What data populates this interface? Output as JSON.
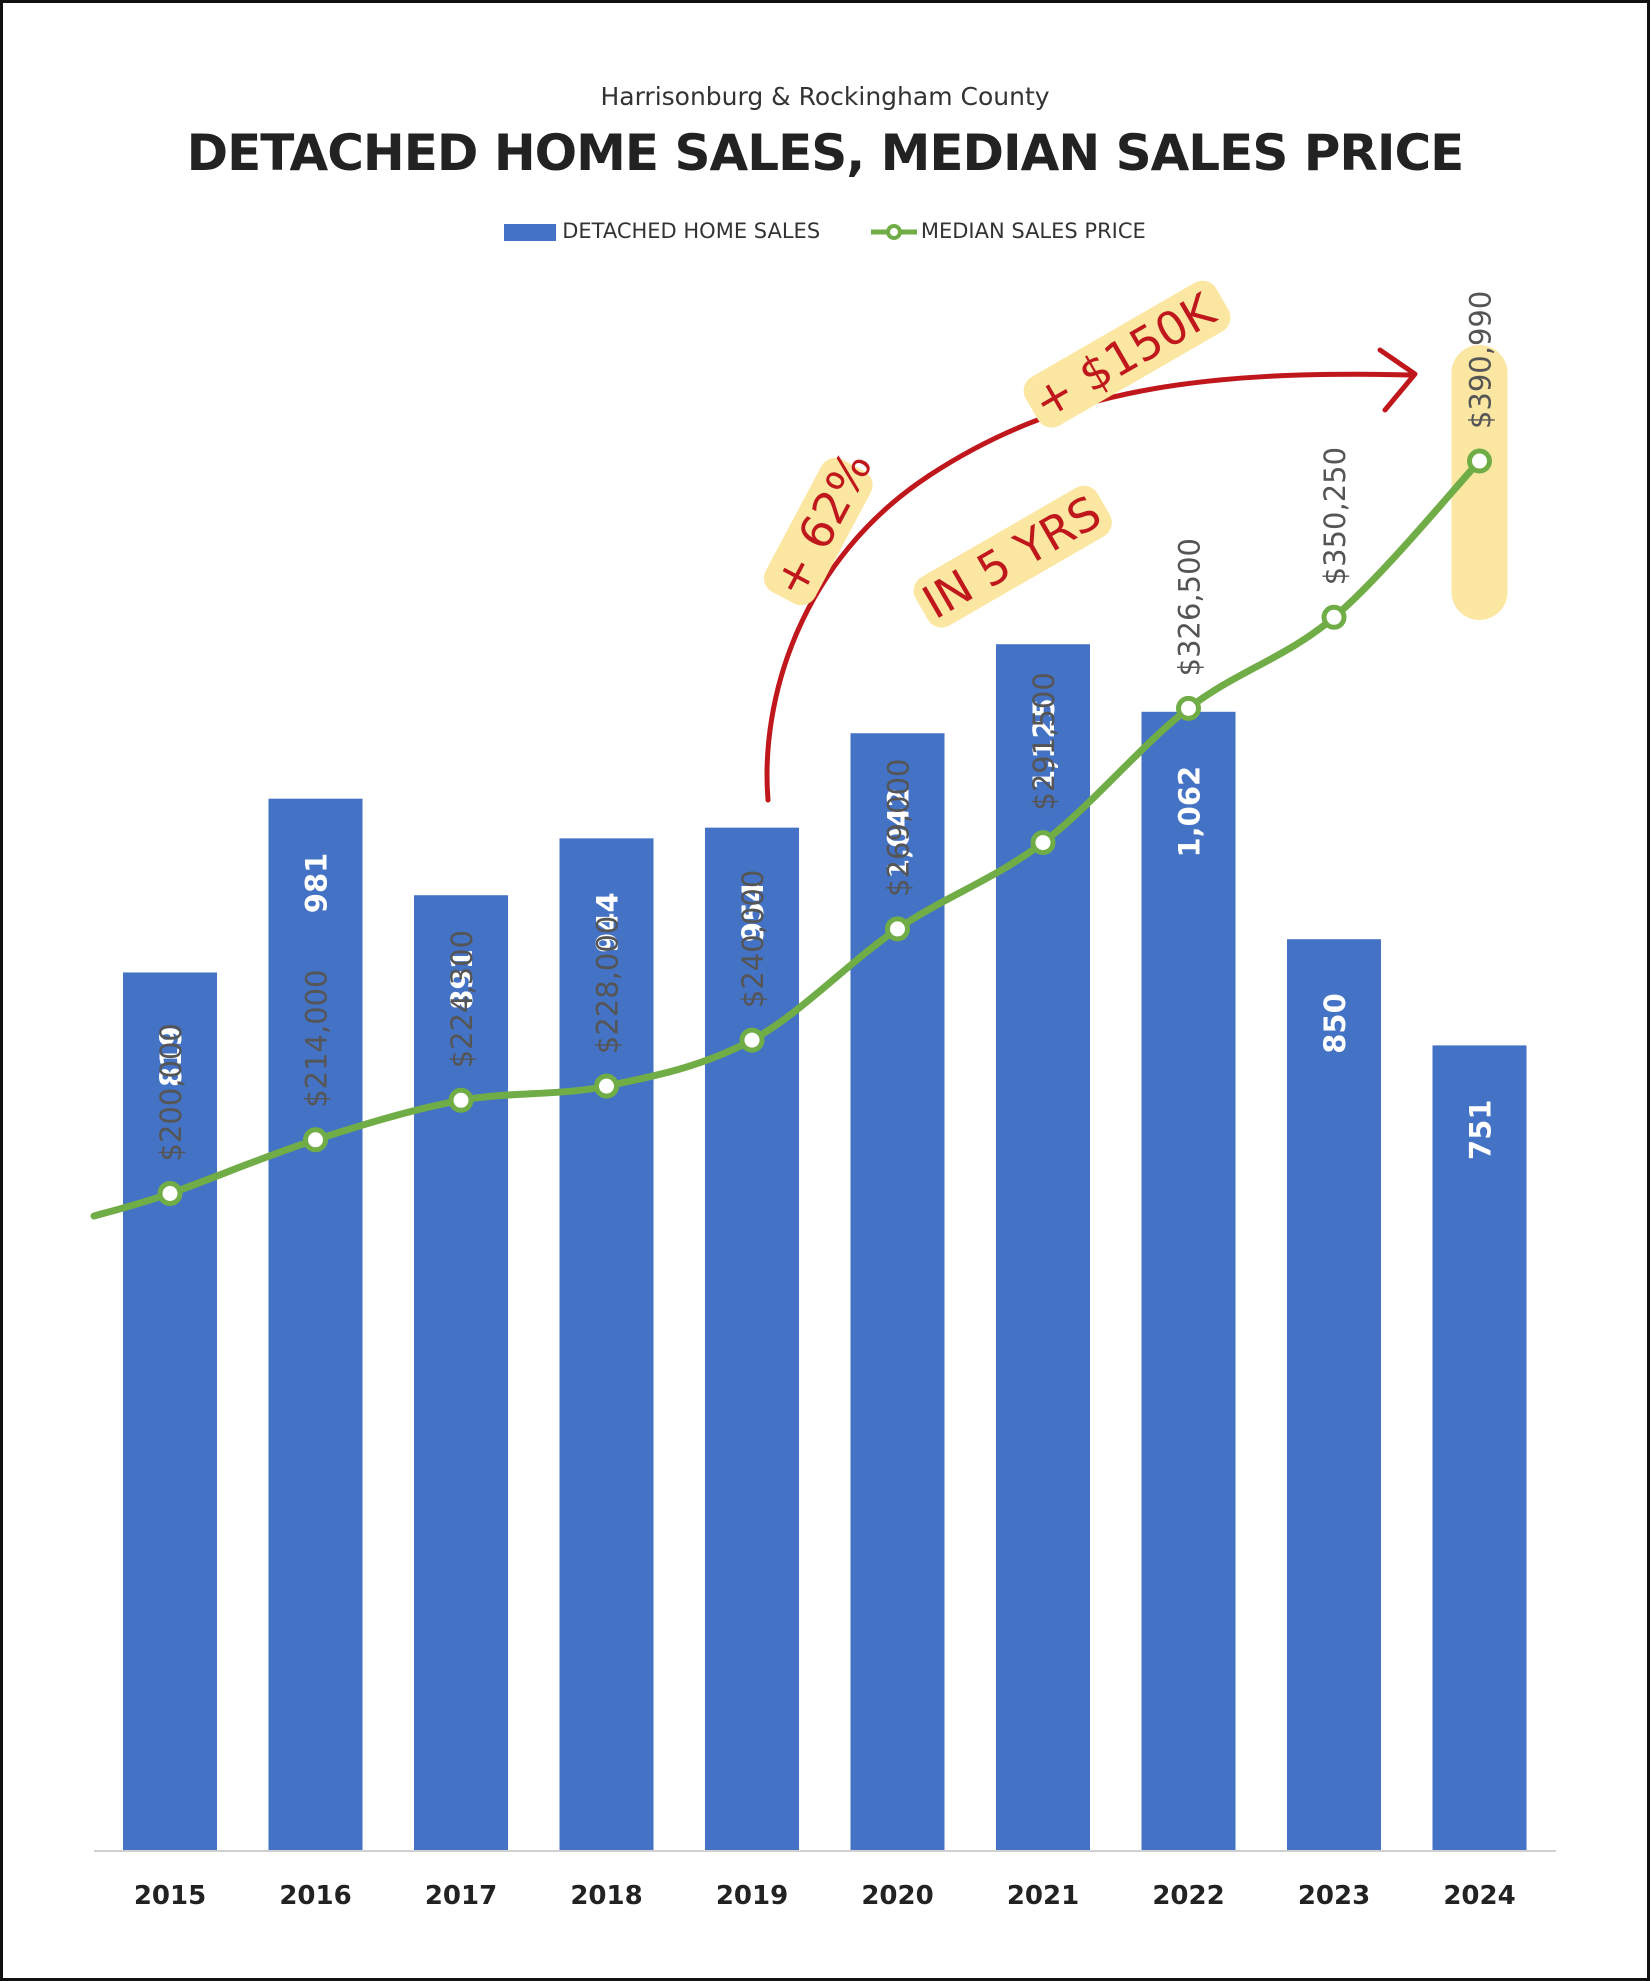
{
  "chart_data": {
    "type": "bar",
    "subtitle": "Harrisonburg & Rockingham County",
    "title": "DETACHED HOME SALES, MEDIAN SALES PRICE",
    "categories": [
      "2015",
      "2016",
      "2017",
      "2018",
      "2019",
      "2020",
      "2021",
      "2022",
      "2023",
      "2024"
    ],
    "series": [
      {
        "name": "DETACHED HOME SALES",
        "type": "bar",
        "color": "#4472c4",
        "values": [
          819,
          981,
          891,
          944,
          954,
          1042,
          1125,
          1062,
          850,
          751
        ],
        "labels": [
          "819",
          "981",
          "891",
          "944",
          "954",
          "1,042",
          "1,125",
          "1,062",
          "850",
          "751"
        ]
      },
      {
        "name": "MEDIAN SALES PRICE",
        "type": "line",
        "color": "#70ad47",
        "values": [
          200000,
          214000,
          224300,
          228000,
          240000,
          269000,
          291500,
          326500,
          350250,
          390990
        ],
        "labels": [
          "$200,000",
          "$214,000",
          "$224,300",
          "$228,000",
          "$240,000",
          "$269,000",
          "$291,500",
          "$326,500",
          "$350,250",
          "$390,990"
        ]
      }
    ],
    "highlighted_categories": [
      "2019",
      "2024"
    ],
    "annotations": [
      "+ 62%",
      "+ $150K",
      "IN 5 YRS"
    ],
    "legend_position": "top-center",
    "grid": false
  },
  "colors": {
    "bar": "#4472c4",
    "line": "#70ad47",
    "highlight": "#fbe7a1",
    "annotation": "#c0171d"
  }
}
